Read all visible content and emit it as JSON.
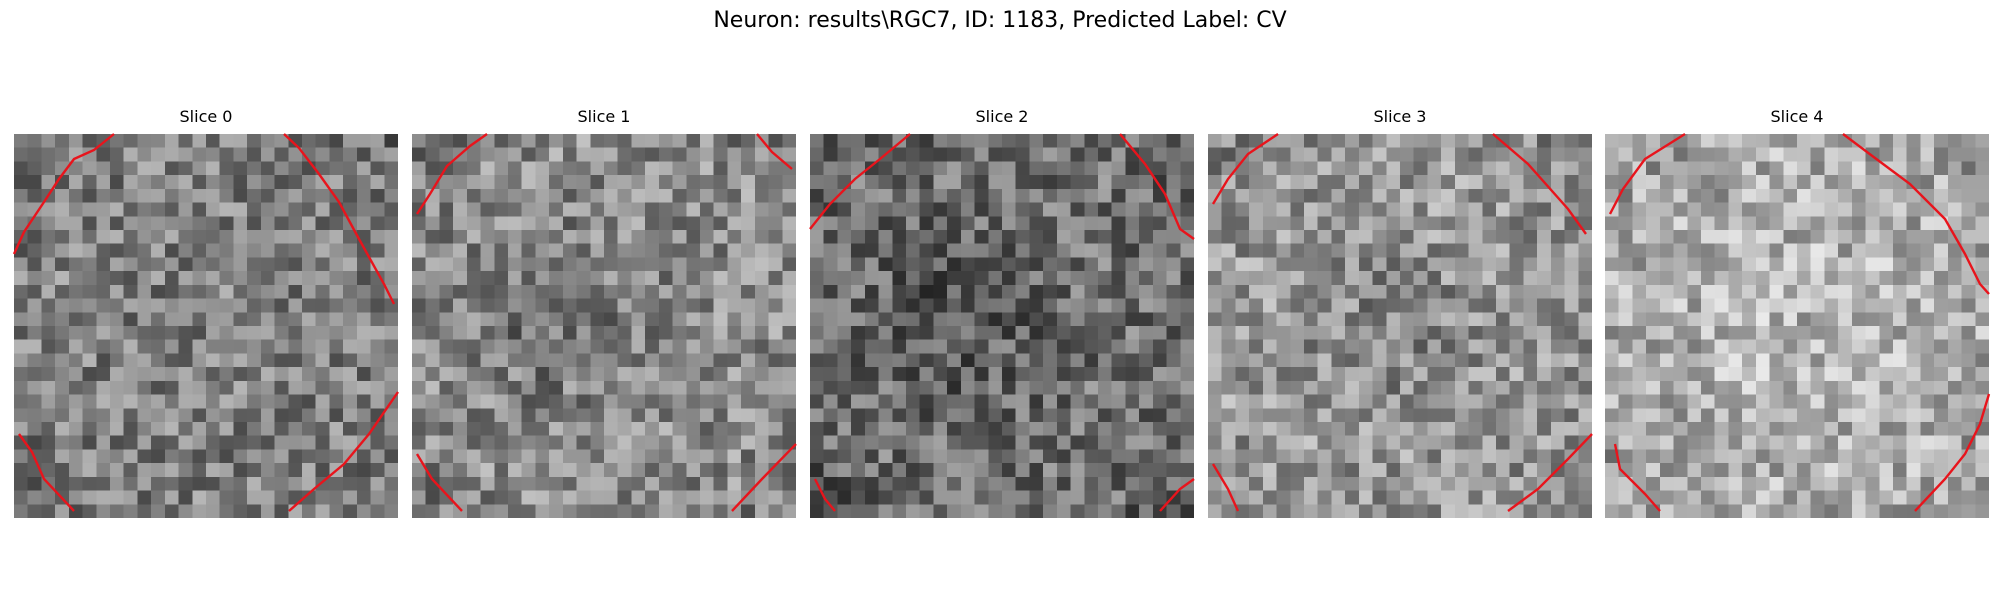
{
  "figure": {
    "title": "Neuron: results\\RGC7, ID: 1183, Predicted Label: CV"
  },
  "slices": [
    {
      "label": "Slice 0",
      "tone": "mid"
    },
    {
      "label": "Slice 1",
      "tone": "mid-light"
    },
    {
      "label": "Slice 2",
      "tone": "dark"
    },
    {
      "label": "Slice 3",
      "tone": "light"
    },
    {
      "label": "Slice 4",
      "tone": "very-light"
    }
  ],
  "colors": {
    "contour": "#e8141c",
    "background": "#ffffff"
  },
  "image_style": "grayscale pixel grid with red contour lines near corners"
}
